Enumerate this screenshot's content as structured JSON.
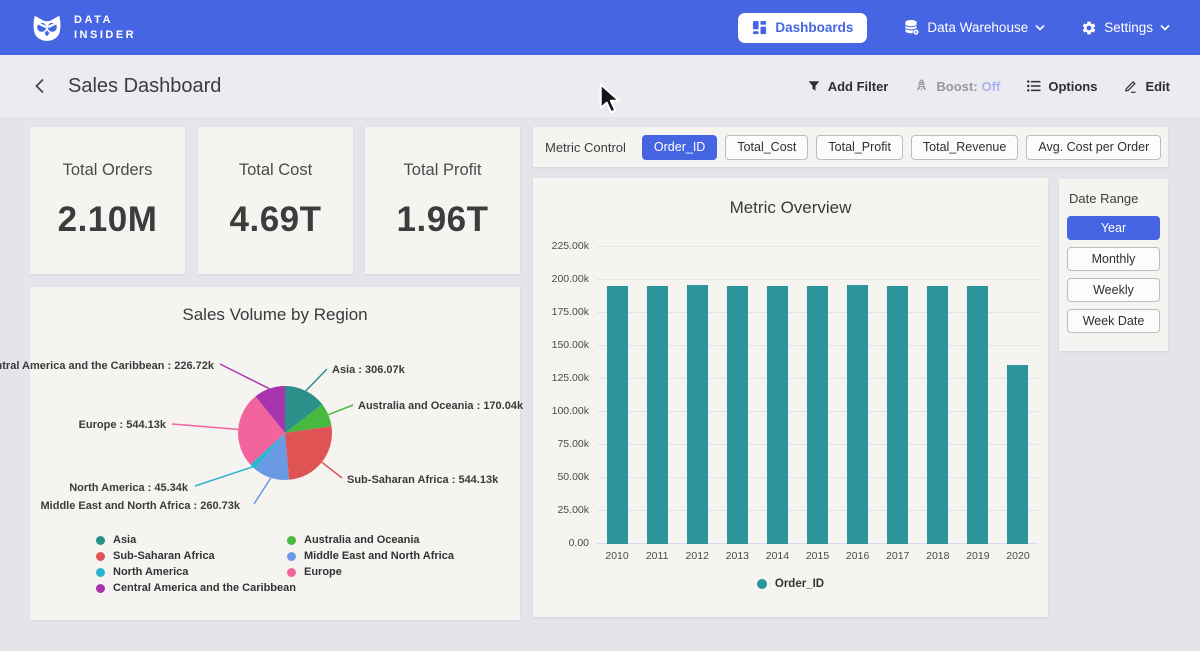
{
  "colors": {
    "brand_blue": "#4565e2",
    "bar_teal": "#2b959b",
    "page_bg": "#e6e4eb",
    "card_bg": "#f5f4f1",
    "boost_off": "#a9b4ea"
  },
  "navbar": {
    "brand_line1": "DATA",
    "brand_line2": "INSIDER",
    "dashboards_label": "Dashboards",
    "data_warehouse_label": "Data Warehouse",
    "settings_label": "Settings"
  },
  "header": {
    "title": "Sales Dashboard",
    "add_filter_label": "Add Filter",
    "boost_label": "Boost:",
    "boost_value": "Off",
    "options_label": "Options",
    "edit_label": "Edit"
  },
  "kpis": [
    {
      "label": "Total Orders",
      "value": "2.10M"
    },
    {
      "label": "Total Cost",
      "value": "4.69T"
    },
    {
      "label": "Total Profit",
      "value": "1.96T"
    }
  ],
  "metric_control": {
    "label": "Metric Control",
    "options": [
      "Order_ID",
      "Total_Cost",
      "Total_Profit",
      "Total_Revenue",
      "Avg. Cost per Order"
    ],
    "selected": "Order_ID"
  },
  "date_range": {
    "label": "Date Range",
    "options": [
      "Year",
      "Monthly",
      "Weekly",
      "Week Date"
    ],
    "selected": "Year"
  },
  "chart_data": [
    {
      "id": "metric-overview",
      "type": "bar",
      "title": "Metric Overview",
      "categories": [
        "2010",
        "2011",
        "2012",
        "2013",
        "2014",
        "2015",
        "2016",
        "2017",
        "2018",
        "2019",
        "2020"
      ],
      "series": [
        {
          "name": "Order_ID",
          "color": "#2b959b",
          "values": [
            195400,
            195300,
            196300,
            195300,
            195300,
            195500,
            196100,
            195600,
            195500,
            195700,
            135300
          ]
        }
      ],
      "ylim": [
        0,
        225000
      ],
      "ytick_labels": [
        "0.00",
        "25.00k",
        "50.00k",
        "75.00k",
        "100.00k",
        "125.00k",
        "150.00k",
        "175.00k",
        "200.00k",
        "225.00k"
      ],
      "grid": true,
      "legend_position": "bottom"
    },
    {
      "id": "sales-volume-by-region",
      "type": "pie",
      "title": "Sales Volume by Region",
      "slices": [
        {
          "name": "Asia",
          "value": 306070,
          "display": "306.07k",
          "color": "#2a9089"
        },
        {
          "name": "Australia and Oceania",
          "value": 170040,
          "display": "170.04k",
          "color": "#49b841"
        },
        {
          "name": "Sub-Saharan Africa",
          "value": 544130,
          "display": "544.13k",
          "color": "#df5354"
        },
        {
          "name": "Middle East and North Africa",
          "value": 260730,
          "display": "260.73k",
          "color": "#6b9ae4"
        },
        {
          "name": "North America",
          "value": 45340,
          "display": "45.34k",
          "color": "#29b5cb"
        },
        {
          "name": "Europe",
          "value": 544130,
          "display": "544.13k",
          "color": "#f2649e"
        },
        {
          "name": "Central America and the Caribbean",
          "value": 226720,
          "display": "226.72k",
          "color": "#a834ad"
        }
      ],
      "label_format": "{name} : {display}",
      "legend_columns": [
        [
          "Asia",
          "Sub-Saharan Africa",
          "North America",
          "Central America and the Caribbean"
        ],
        [
          "Australia and Oceania",
          "Middle East and North Africa",
          "Europe"
        ]
      ]
    }
  ]
}
